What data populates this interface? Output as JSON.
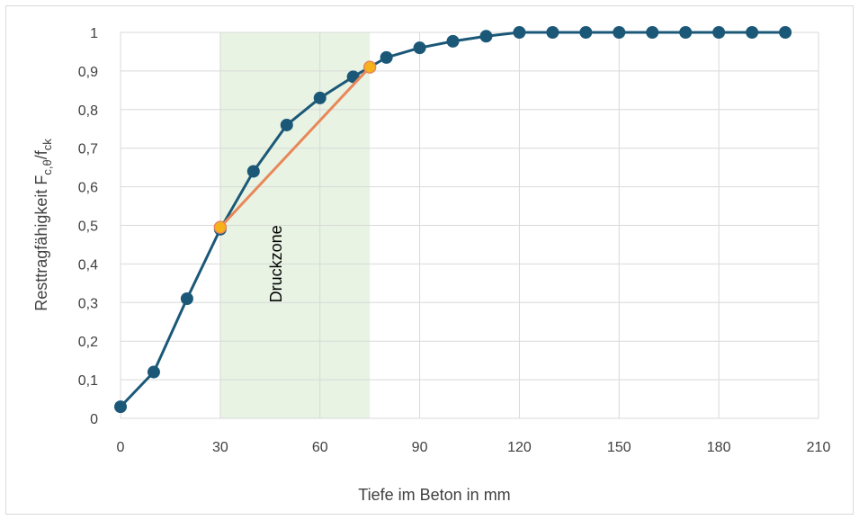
{
  "chart_data": {
    "type": "line",
    "xlabel": "Tiefe im Beton in mm",
    "ylabel_main": "Resttragfähigkeit F",
    "ylabel_sub1": "c,θ",
    "ylabel_mid": "/f",
    "ylabel_sub2": "ck",
    "xlim": [
      0,
      210
    ],
    "ylim": [
      0,
      1
    ],
    "x_ticks": [
      0,
      30,
      60,
      90,
      120,
      150,
      180,
      210
    ],
    "x_tick_labels": [
      "0",
      "30",
      "60",
      "90",
      "120",
      "150",
      "180",
      "210"
    ],
    "y_ticks": [
      0,
      0.1,
      0.2,
      0.3,
      0.4,
      0.5,
      0.6,
      0.7,
      0.8,
      0.9,
      1
    ],
    "y_tick_labels": [
      "0",
      "0,1",
      "0,2",
      "0,3",
      "0,4",
      "0,5",
      "0,6",
      "0,7",
      "0,8",
      "0,9",
      "1"
    ],
    "grid": true,
    "series": [
      {
        "x": [
          0,
          10,
          20,
          30,
          40,
          50,
          60,
          70,
          80,
          90,
          100,
          110,
          120,
          130,
          140,
          150,
          160,
          170,
          180,
          190,
          200
        ],
        "y": [
          0.03,
          0.12,
          0.31,
          0.49,
          0.64,
          0.76,
          0.83,
          0.885,
          0.935,
          0.96,
          0.977,
          0.99,
          1,
          1,
          1,
          1,
          1,
          1,
          1,
          1,
          1
        ],
        "color": "#1b5878"
      }
    ],
    "secant": {
      "x": [
        30,
        75
      ],
      "y": [
        0.495,
        0.91
      ],
      "line_color": "#e8875a",
      "marker_color": "#f5b21b"
    },
    "shaded_region": {
      "x_range": [
        30,
        75
      ],
      "color": "#e8f3e3",
      "label": "Druckzone"
    }
  }
}
